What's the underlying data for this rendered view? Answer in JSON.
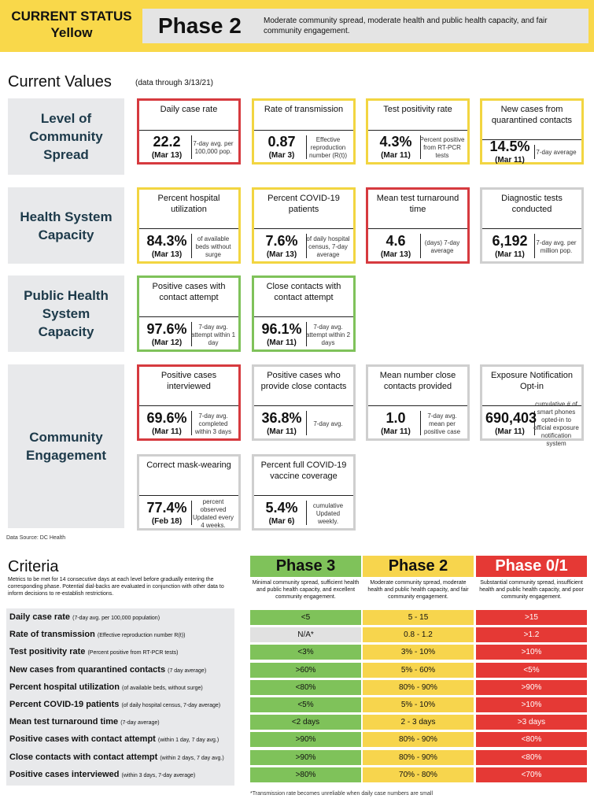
{
  "header": {
    "status_line1": "CURRENT STATUS",
    "status_line2": "Yellow",
    "phase": "Phase 2",
    "phase_description": "Moderate community spread, moderate health and public health capacity, and fair community engagement."
  },
  "current_values": {
    "title": "Current Values",
    "date_note": "(data through 3/13/21)"
  },
  "categories": [
    "Level of Community Spread",
    "Health System Capacity",
    "Public Health System Capacity",
    "Community Engagement"
  ],
  "cards": [
    {
      "title": "Daily case rate",
      "value": "22.2",
      "date": "(Mar 13)",
      "desc": "7-day avg. per 100,000 pop.",
      "status": "red"
    },
    {
      "title": "Rate of transmission",
      "value": "0.87",
      "date": "(Mar 3)",
      "desc": "Effective reproduction number (R(t))",
      "status": "yellow"
    },
    {
      "title": "Test positivity rate",
      "value": "4.3%",
      "date": "(Mar 11)",
      "desc": "Percent positive from RT-PCR tests",
      "status": "yellow"
    },
    {
      "title": "New cases from quarantined contacts",
      "value": "14.5%",
      "date": "(Mar 11)",
      "desc": "7-day average",
      "status": "yellow"
    },
    {
      "title": "Percent hospital utilization",
      "value": "84.3%",
      "date": "(Mar 13)",
      "desc": "of available beds without surge",
      "status": "yellow"
    },
    {
      "title": "Percent COVID-19 patients",
      "value": "7.6%",
      "date": "(Mar 13)",
      "desc": "of daily hospital census, 7-day average",
      "status": "yellow"
    },
    {
      "title": "Mean test turnaround time",
      "value": "4.6",
      "date": "(Mar 13)",
      "desc": "(days) 7-day average",
      "status": "red"
    },
    {
      "title": "Diagnostic tests conducted",
      "value": "6,192",
      "date": "(Mar 11)",
      "desc": "7-day avg. per million pop.",
      "status": "grey"
    },
    {
      "title": "Positive cases with contact attempt",
      "value": "97.6%",
      "date": "(Mar 12)",
      "desc": "7-day avg. attempt within 1 day",
      "status": "green"
    },
    {
      "title": "Close contacts with contact attempt",
      "value": "96.1%",
      "date": "(Mar 11)",
      "desc": "7-day avg. attempt within 2 days",
      "status": "green"
    },
    {
      "title": "Positive cases interviewed",
      "value": "69.6%",
      "date": "(Mar 11)",
      "desc": "7-day avg. completed within 3 days",
      "status": "red"
    },
    {
      "title": "Positive cases who provide close contacts",
      "value": "36.8%",
      "date": "(Mar 11)",
      "desc": "7-day avg.",
      "status": "grey"
    },
    {
      "title": "Mean number close contacts provided",
      "value": "1.0",
      "date": "(Mar 11)",
      "desc": "7-day avg. mean per positive case",
      "status": "grey"
    },
    {
      "title": "Exposure Notification Opt-in",
      "value": "690,403",
      "date": "(Mar 11)",
      "desc": "cumulative # of smart phones opted-in to official exposure notification system",
      "status": "grey"
    },
    {
      "title": "Correct mask-wearing",
      "value": "77.4%",
      "date": "(Feb 18)",
      "desc": "percent observed Updated every 4 weeks.",
      "status": "grey"
    },
    {
      "title": "Percent full COVID-19 vaccine coverage",
      "value": "5.4%",
      "date": "(Mar 6)",
      "desc": "cumulative Updated weekly.",
      "status": "grey"
    }
  ],
  "data_source": "Data Source: DC Health",
  "criteria": {
    "title": "Criteria",
    "note": "Metrics to be met for 14 consecutive days at each level before gradually entering the corresponding phase. Potential dial-backs are evaluated in conjunction with other data to inform decisions to re-establish restrictions.",
    "phases": [
      {
        "name": "Phase 3",
        "desc": "Minimal community spread, sufficient health and public health capacity, and excellent community engagement."
      },
      {
        "name": "Phase 2",
        "desc": "Moderate community spread, moderate health and public health capacity, and fair community engagement."
      },
      {
        "name": "Phase 0/1",
        "desc": "Substantial community spread, insufficient health and public health capacity, and poor community engagement."
      }
    ],
    "rows": [
      {
        "label": "Daily case rate",
        "sub": "(7-day avg. per 100,000 population)",
        "p3": "<5",
        "p2": "5 - 15",
        "p1": ">15"
      },
      {
        "label": "Rate of transmission",
        "sub": "(Effective reproduction number R(t))",
        "p3": "N/A*",
        "p2": "0.8 - 1.2",
        "p1": ">1.2"
      },
      {
        "label": "Test positivity rate",
        "sub": "(Percent positive from RT-PCR tests)",
        "p3": "<3%",
        "p2": "3% - 10%",
        "p1": ">10%"
      },
      {
        "label": "New cases from quarantined contacts",
        "sub": "(7 day average)",
        "p3": ">60%",
        "p2": "5% - 60%",
        "p1": "<5%"
      },
      {
        "label": "Percent hospital utilization",
        "sub": "(of available beds, without surge)",
        "p3": "<80%",
        "p2": "80% - 90%",
        "p1": ">90%"
      },
      {
        "label": "Percent COVID-19 patients",
        "sub": "(of daily hospital census, 7-day average)",
        "p3": "<5%",
        "p2": "5% - 10%",
        "p1": ">10%"
      },
      {
        "label": "Mean test turnaround time",
        "sub": "(7-day average)",
        "p3": "<2 days",
        "p2": "2 - 3 days",
        "p1": ">3 days"
      },
      {
        "label": "Positive cases with contact attempt",
        "sub": "(within 1 day, 7 day avg.)",
        "p3": ">90%",
        "p2": "80% - 90%",
        "p1": "<80%"
      },
      {
        "label": "Close contacts with contact attempt",
        "sub": "(within 2 days, 7 day avg.)",
        "p3": ">90%",
        "p2": "80% - 90%",
        "p1": "<80%"
      },
      {
        "label": "Positive cases interviewed",
        "sub": "(within 3 days, 7-day average)",
        "p3": ">80%",
        "p2": "70% - 80%",
        "p1": "<70%"
      }
    ],
    "footnote": "*Transmission rate becomes unreliable when daily case numbers are small"
  },
  "colors": {
    "red": "#d63a3f",
    "yellow": "#f2d541",
    "green": "#7fc25a",
    "grey": "#cfcfcf",
    "header": "#f9d84a"
  }
}
